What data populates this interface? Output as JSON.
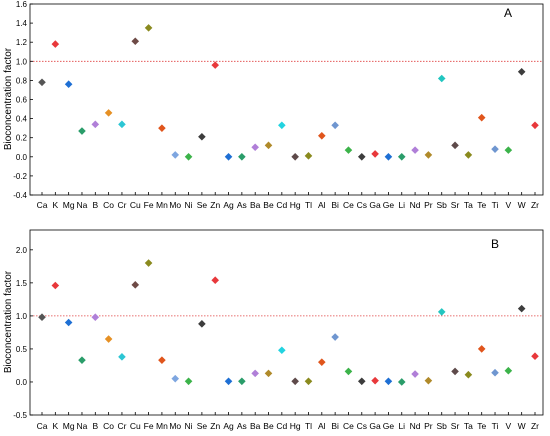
{
  "chart_data": [
    {
      "type": "scatter",
      "panel_label": "A",
      "ylabel": "Bioconcentration factor",
      "ylim": [
        -0.4,
        1.6
      ],
      "yticks": [
        "-0.4",
        "-0.2",
        "0.0",
        "0.2",
        "0.4",
        "0.6",
        "0.8",
        "1.0",
        "1.2",
        "1.4",
        "1.6"
      ],
      "reference_line": 1.0,
      "categories": [
        "Ca",
        "K",
        "Mg",
        "Na",
        "B",
        "Co",
        "Cr",
        "Cu",
        "Fe",
        "Mn",
        "Mo",
        "Ni",
        "Se",
        "Zn",
        "Ag",
        "As",
        "Ba",
        "Be",
        "Cd",
        "Hg",
        "Tl",
        "Al",
        "Bi",
        "Ce",
        "Cs",
        "Ga",
        "Ge",
        "Li",
        "Nd",
        "Pr",
        "Sb",
        "Sr",
        "Ta",
        "Te",
        "Ti",
        "V",
        "W",
        "Zr"
      ],
      "values": [
        0.78,
        1.18,
        0.76,
        0.27,
        0.34,
        0.46,
        0.34,
        1.21,
        1.35,
        0.3,
        0.02,
        0.0,
        0.21,
        0.96,
        0.0,
        0.0,
        0.1,
        0.12,
        0.33,
        0.0,
        0.01,
        0.22,
        0.33,
        0.07,
        0.0,
        0.03,
        0.0,
        0.0,
        0.07,
        0.02,
        0.82,
        0.12,
        0.02,
        0.41,
        0.08,
        0.07,
        0.89,
        0.33
      ]
    },
    {
      "type": "scatter",
      "panel_label": "B",
      "ylabel": "Bioconcentration factor",
      "ylim": [
        -0.5,
        2.3
      ],
      "yticks": [
        "-0.5",
        "0.0",
        "0.5",
        "1.0",
        "1.5",
        "2.0"
      ],
      "reference_line": 1.0,
      "categories": [
        "Ca",
        "K",
        "Mg",
        "Na",
        "B",
        "Co",
        "Cr",
        "Cu",
        "Fe",
        "Mn",
        "Mo",
        "Ni",
        "Se",
        "Zn",
        "Ag",
        "As",
        "Ba",
        "Be",
        "Cd",
        "Hg",
        "Tl",
        "Al",
        "Bi",
        "Ce",
        "Cs",
        "Ga",
        "Ge",
        "Li",
        "Nd",
        "Pr",
        "Sb",
        "Sr",
        "Ta",
        "Te",
        "Ti",
        "V",
        "W",
        "Zr"
      ],
      "values": [
        0.98,
        1.46,
        0.9,
        0.33,
        0.98,
        0.65,
        0.38,
        1.47,
        1.8,
        0.33,
        0.05,
        0.01,
        0.88,
        1.54,
        0.01,
        0.01,
        0.13,
        0.13,
        0.48,
        0.01,
        0.01,
        0.3,
        0.68,
        0.16,
        0.01,
        0.02,
        0.01,
        0.0,
        0.12,
        0.02,
        1.06,
        0.16,
        0.11,
        0.5,
        0.14,
        0.17,
        1.11,
        0.39
      ]
    }
  ],
  "colors": [
    "#555555",
    "#e8383b",
    "#1e6fd4",
    "#2a9d6a",
    "#b07fd8",
    "#e69024",
    "#2cc6d4",
    "#6e4a46",
    "#8a8a1e",
    "#e0551c",
    "#7ea6e0",
    "#3cb34a",
    "#3d3d3d",
    "#e8383b",
    "#1e6fd4",
    "#2a9d6a",
    "#b07fd8",
    "#b08a2a",
    "#22d3e0",
    "#5e4a4a",
    "#8a8a1e",
    "#e0551c",
    "#6f96d0",
    "#3cb34a",
    "#3d3d3d",
    "#e8383b",
    "#1e6fd4",
    "#2a9d6a",
    "#b07fd8",
    "#b08a2a",
    "#22c6c0",
    "#5e4a4a",
    "#8a8a1e",
    "#e0551c",
    "#6f96d0",
    "#3cb34a",
    "#3d3d3d",
    "#e8383b"
  ],
  "reference_line_color": "#e04040"
}
